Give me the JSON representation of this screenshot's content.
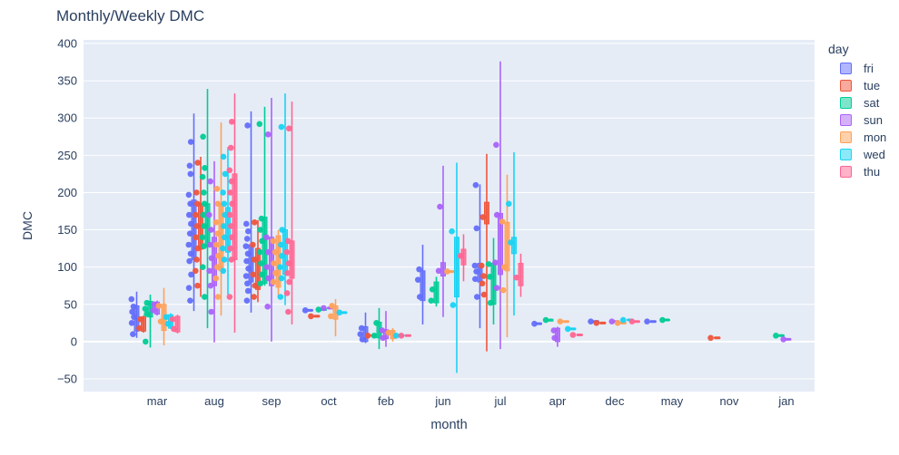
{
  "title": "Monthly/Weekly DMC",
  "legend": {
    "title": "day"
  },
  "colors": {
    "plot_bg": "#E5ECF6",
    "grid": "#FFFFFF",
    "text": "#2A3F5F"
  },
  "chart_data": {
    "type": "box",
    "title": "Monthly/Weekly DMC",
    "xlabel": "month",
    "ylabel": "DMC",
    "ylim": [
      -66,
      410
    ],
    "yticks": [
      -50,
      0,
      50,
      100,
      150,
      200,
      250,
      300,
      350,
      400
    ],
    "categories": [
      "mar",
      "aug",
      "sep",
      "oct",
      "feb",
      "jun",
      "jul",
      "apr",
      "dec",
      "may",
      "nov",
      "jan"
    ],
    "legend_title": "day",
    "legend_position": "right",
    "grid": true,
    "series": [
      {
        "name": "fri",
        "color": "#636EFA"
      },
      {
        "name": "tue",
        "color": "#EF553B"
      },
      {
        "name": "sat",
        "color": "#00CC96"
      },
      {
        "name": "sun",
        "color": "#AB63FA"
      },
      {
        "name": "mon",
        "color": "#FFA15A"
      },
      {
        "name": "wed",
        "color": "#19D3F3"
      },
      {
        "name": "thu",
        "color": "#FF6692"
      }
    ],
    "groups": [
      {
        "month": "mar",
        "entries": [
          {
            "day": "fri",
            "whisker": [
              5,
              67
            ],
            "box": [
              14,
              48
            ],
            "points": [
              57,
              47,
              40,
              33,
              25,
              10
            ]
          },
          {
            "day": "tue",
            "whisker": [
              12,
              35
            ],
            "box": [
              14,
              33
            ],
            "points": [
              30,
              18
            ]
          },
          {
            "day": "sat",
            "whisker": [
              -8,
              63
            ],
            "box": [
              33,
              54
            ],
            "points": [
              52,
              44,
              37,
              0
            ]
          },
          {
            "day": "sun",
            "whisker": [
              35,
              55
            ],
            "box": [
              37,
              53
            ],
            "points": [
              50,
              42
            ]
          },
          {
            "day": "mon",
            "whisker": [
              -5,
              72
            ],
            "box": [
              15,
              50
            ],
            "points": [
              48,
              27
            ]
          },
          {
            "day": "wed",
            "whisker": [
              17,
              38
            ],
            "box": [
              18,
              36
            ],
            "points": [
              33,
              24
            ]
          },
          {
            "day": "thu",
            "whisker": [
              11,
              36
            ],
            "box": [
              13,
              34
            ],
            "points": [
              30,
              17
            ]
          }
        ]
      },
      {
        "month": "aug",
        "entries": [
          {
            "day": "fri",
            "whisker": [
              41,
              306
            ],
            "box": [
              110,
              190
            ],
            "points": [
              268,
              236,
              225,
              197,
              185,
              170,
              158,
              145,
              130,
              118,
              108,
              90,
              72,
              55
            ]
          },
          {
            "day": "tue",
            "whisker": [
              60,
              248
            ],
            "box": [
              124,
              185
            ],
            "points": [
              240,
              200,
              185,
              170,
              155,
              140,
              125,
              110,
              95,
              75
            ]
          },
          {
            "day": "sat",
            "whisker": [
              18,
              339
            ],
            "box": [
              128,
              185
            ],
            "points": [
              275,
              233,
              221,
              200,
              185,
              170,
              155,
              140,
              128,
              100,
              60
            ]
          },
          {
            "day": "sun",
            "whisker": [
              -1,
              242
            ],
            "box": [
              75,
              140
            ],
            "points": [
              215,
              170,
              150,
              130,
              112,
              95,
              75,
              40
            ]
          },
          {
            "day": "mon",
            "whisker": [
              35,
              294
            ],
            "box": [
              95,
              185
            ],
            "points": [
              205,
              185,
              160,
              145,
              130,
              115,
              100,
              85,
              60
            ]
          },
          {
            "day": "wed",
            "whisker": [
              63,
              261
            ],
            "box": [
              120,
              180
            ],
            "points": [
              248,
              225,
              200,
              185,
              170,
              155,
              140,
              125,
              110,
              95
            ]
          },
          {
            "day": "thu",
            "whisker": [
              12,
              333
            ],
            "box": [
              110,
              225
            ],
            "points": [
              295,
              260,
              230,
              215,
              200,
              185,
              170,
              155,
              140,
              125,
              110,
              60
            ]
          }
        ]
      },
      {
        "month": "sep",
        "entries": [
          {
            "day": "fri",
            "whisker": [
              39,
              309
            ],
            "box": [
              80,
              130
            ],
            "points": [
              290,
              158,
              148,
              138,
              128,
              118,
              108,
              98,
              88,
              78,
              68,
              55
            ]
          },
          {
            "day": "tue",
            "whisker": [
              53,
              163
            ],
            "box": [
              70,
              125
            ],
            "points": [
              160,
              130,
              110,
              90,
              75,
              60
            ]
          },
          {
            "day": "sat",
            "whisker": [
              75,
              315
            ],
            "box": [
              78,
              167
            ],
            "points": [
              292,
              165,
              150,
              135,
              120,
              105,
              90,
              78
            ]
          },
          {
            "day": "sun",
            "whisker": [
              0,
              327
            ],
            "box": [
              75,
              140
            ],
            "points": [
              278,
              140,
              120,
              100,
              85,
              47
            ]
          },
          {
            "day": "mon",
            "whisker": [
              60,
              150
            ],
            "box": [
              73,
              142
            ],
            "points": [
              135,
              120,
              105,
              92,
              80
            ]
          },
          {
            "day": "wed",
            "whisker": [
              49,
              333
            ],
            "box": [
              90,
              150
            ],
            "points": [
              288,
              150,
              130,
              115,
              100,
              85,
              60
            ]
          },
          {
            "day": "thu",
            "whisker": [
              23,
              322
            ],
            "box": [
              85,
              135
            ],
            "points": [
              286,
              135,
              120,
              105,
              92,
              80,
              65,
              40
            ]
          }
        ]
      },
      {
        "month": "oct",
        "entries": [
          {
            "day": "fri",
            "whisker": null,
            "box": null,
            "points": [
              42
            ]
          },
          {
            "day": "tue",
            "whisker": null,
            "box": null,
            "points": [
              34
            ]
          },
          {
            "day": "sat",
            "whisker": null,
            "box": null,
            "points": [
              43
            ]
          },
          {
            "day": "sun",
            "whisker": null,
            "box": null,
            "points": [
              45
            ]
          },
          {
            "day": "mon",
            "whisker": [
              7,
              57
            ],
            "box": [
              30,
              48
            ],
            "points": [
              48,
              34
            ]
          },
          {
            "day": "wed",
            "whisker": null,
            "box": null,
            "points": [
              39
            ]
          }
        ]
      },
      {
        "month": "feb",
        "entries": [
          {
            "day": "fri",
            "whisker": [
              -2,
              39
            ],
            "box": [
              0,
              20
            ],
            "points": [
              18,
              10,
              3
            ]
          },
          {
            "day": "tue",
            "whisker": null,
            "box": null,
            "points": [
              8
            ]
          },
          {
            "day": "sat",
            "whisker": [
              -10,
              45
            ],
            "box": [
              5,
              26
            ],
            "points": [
              25,
              8
            ]
          },
          {
            "day": "sun",
            "whisker": [
              -7,
              41
            ],
            "box": [
              4,
              16
            ],
            "points": [
              15,
              5
            ]
          },
          {
            "day": "mon",
            "whisker": [
              0,
              18
            ],
            "box": [
              4,
              15
            ],
            "points": [
              12
            ]
          },
          {
            "day": "wed",
            "whisker": null,
            "box": null,
            "points": [
              8
            ]
          },
          {
            "day": "thu",
            "whisker": null,
            "box": null,
            "points": [
              8
            ]
          }
        ]
      },
      {
        "month": "jun",
        "entries": [
          {
            "day": "fri",
            "whisker": [
              23,
              130
            ],
            "box": [
              55,
              95
            ],
            "points": [
              97,
              83,
              60
            ]
          },
          {
            "day": "sat",
            "whisker": [
              47,
              87
            ],
            "box": [
              52,
              80
            ],
            "points": [
              70,
              55
            ]
          },
          {
            "day": "sun",
            "whisker": [
              33,
              236
            ],
            "box": [
              88,
              106
            ],
            "points": [
              181,
              95
            ]
          },
          {
            "day": "mon",
            "whisker": null,
            "box": null,
            "points": [
              94
            ]
          },
          {
            "day": "wed",
            "whisker": [
              -42,
              240
            ],
            "box": [
              60,
              140
            ],
            "points": [
              148,
              49
            ]
          },
          {
            "day": "thu",
            "whisker": [
              81,
              144
            ],
            "box": [
              103,
              124
            ],
            "points": [
              115
            ]
          }
        ]
      },
      {
        "month": "jul",
        "entries": [
          {
            "day": "fri",
            "whisker": [
              18,
              211
            ],
            "box": [
              80,
              105
            ],
            "points": [
              210,
              152,
              102,
              94,
              84,
              60
            ]
          },
          {
            "day": "tue",
            "whisker": [
              -13,
              252
            ],
            "box": [
              158,
              187
            ],
            "points": [
              167,
              102,
              88,
              78,
              63
            ]
          },
          {
            "day": "sat",
            "whisker": [
              23,
              139
            ],
            "box": [
              50,
              105
            ],
            "points": [
              104,
              87,
              52
            ]
          },
          {
            "day": "sun",
            "whisker": [
              -10,
              376
            ],
            "box": [
              90,
              172
            ],
            "points": [
              264,
              170,
              106,
              72
            ]
          },
          {
            "day": "mon",
            "whisker": [
              6,
              224
            ],
            "box": [
              95,
              160
            ],
            "points": [
              161,
              100,
              69
            ]
          },
          {
            "day": "wed",
            "whisker": [
              35,
              254
            ],
            "box": [
              118,
              140
            ],
            "points": [
              185,
              133
            ]
          },
          {
            "day": "thu",
            "whisker": [
              60,
              118
            ],
            "box": [
              75,
              105
            ],
            "points": [
              86
            ]
          }
        ]
      },
      {
        "month": "apr",
        "entries": [
          {
            "day": "fri",
            "whisker": null,
            "box": null,
            "points": [
              24
            ]
          },
          {
            "day": "sat",
            "whisker": [
              27,
              31
            ],
            "box": [
              28,
              30
            ],
            "points": [
              29
            ]
          },
          {
            "day": "sun",
            "whisker": [
              -7,
              20
            ],
            "box": [
              0,
              18
            ],
            "points": [
              15,
              5
            ]
          },
          {
            "day": "mon",
            "whisker": null,
            "box": null,
            "points": [
              27
            ]
          },
          {
            "day": "wed",
            "whisker": null,
            "box": null,
            "points": [
              17
            ]
          },
          {
            "day": "thu",
            "whisker": null,
            "box": null,
            "points": [
              9
            ]
          }
        ]
      },
      {
        "month": "dec",
        "entries": [
          {
            "day": "fri",
            "whisker": null,
            "box": null,
            "points": [
              27
            ]
          },
          {
            "day": "tue",
            "whisker": null,
            "box": null,
            "points": [
              25
            ]
          },
          {
            "day": "sun",
            "whisker": null,
            "box": null,
            "points": [
              27
            ]
          },
          {
            "day": "mon",
            "whisker": null,
            "box": null,
            "points": [
              25
            ]
          },
          {
            "day": "wed",
            "whisker": null,
            "box": null,
            "points": [
              29
            ]
          },
          {
            "day": "thu",
            "whisker": null,
            "box": null,
            "points": [
              27
            ]
          }
        ]
      },
      {
        "month": "may",
        "entries": [
          {
            "day": "fri",
            "whisker": null,
            "box": null,
            "points": [
              27
            ]
          },
          {
            "day": "sat",
            "whisker": null,
            "box": null,
            "points": [
              29
            ]
          }
        ]
      },
      {
        "month": "nov",
        "entries": [
          {
            "day": "tue",
            "whisker": null,
            "box": null,
            "points": [
              5
            ]
          }
        ]
      },
      {
        "month": "jan",
        "entries": [
          {
            "day": "sat",
            "whisker": null,
            "box": null,
            "points": [
              8
            ]
          },
          {
            "day": "sun",
            "whisker": null,
            "box": null,
            "points": [
              3
            ]
          }
        ]
      }
    ]
  }
}
